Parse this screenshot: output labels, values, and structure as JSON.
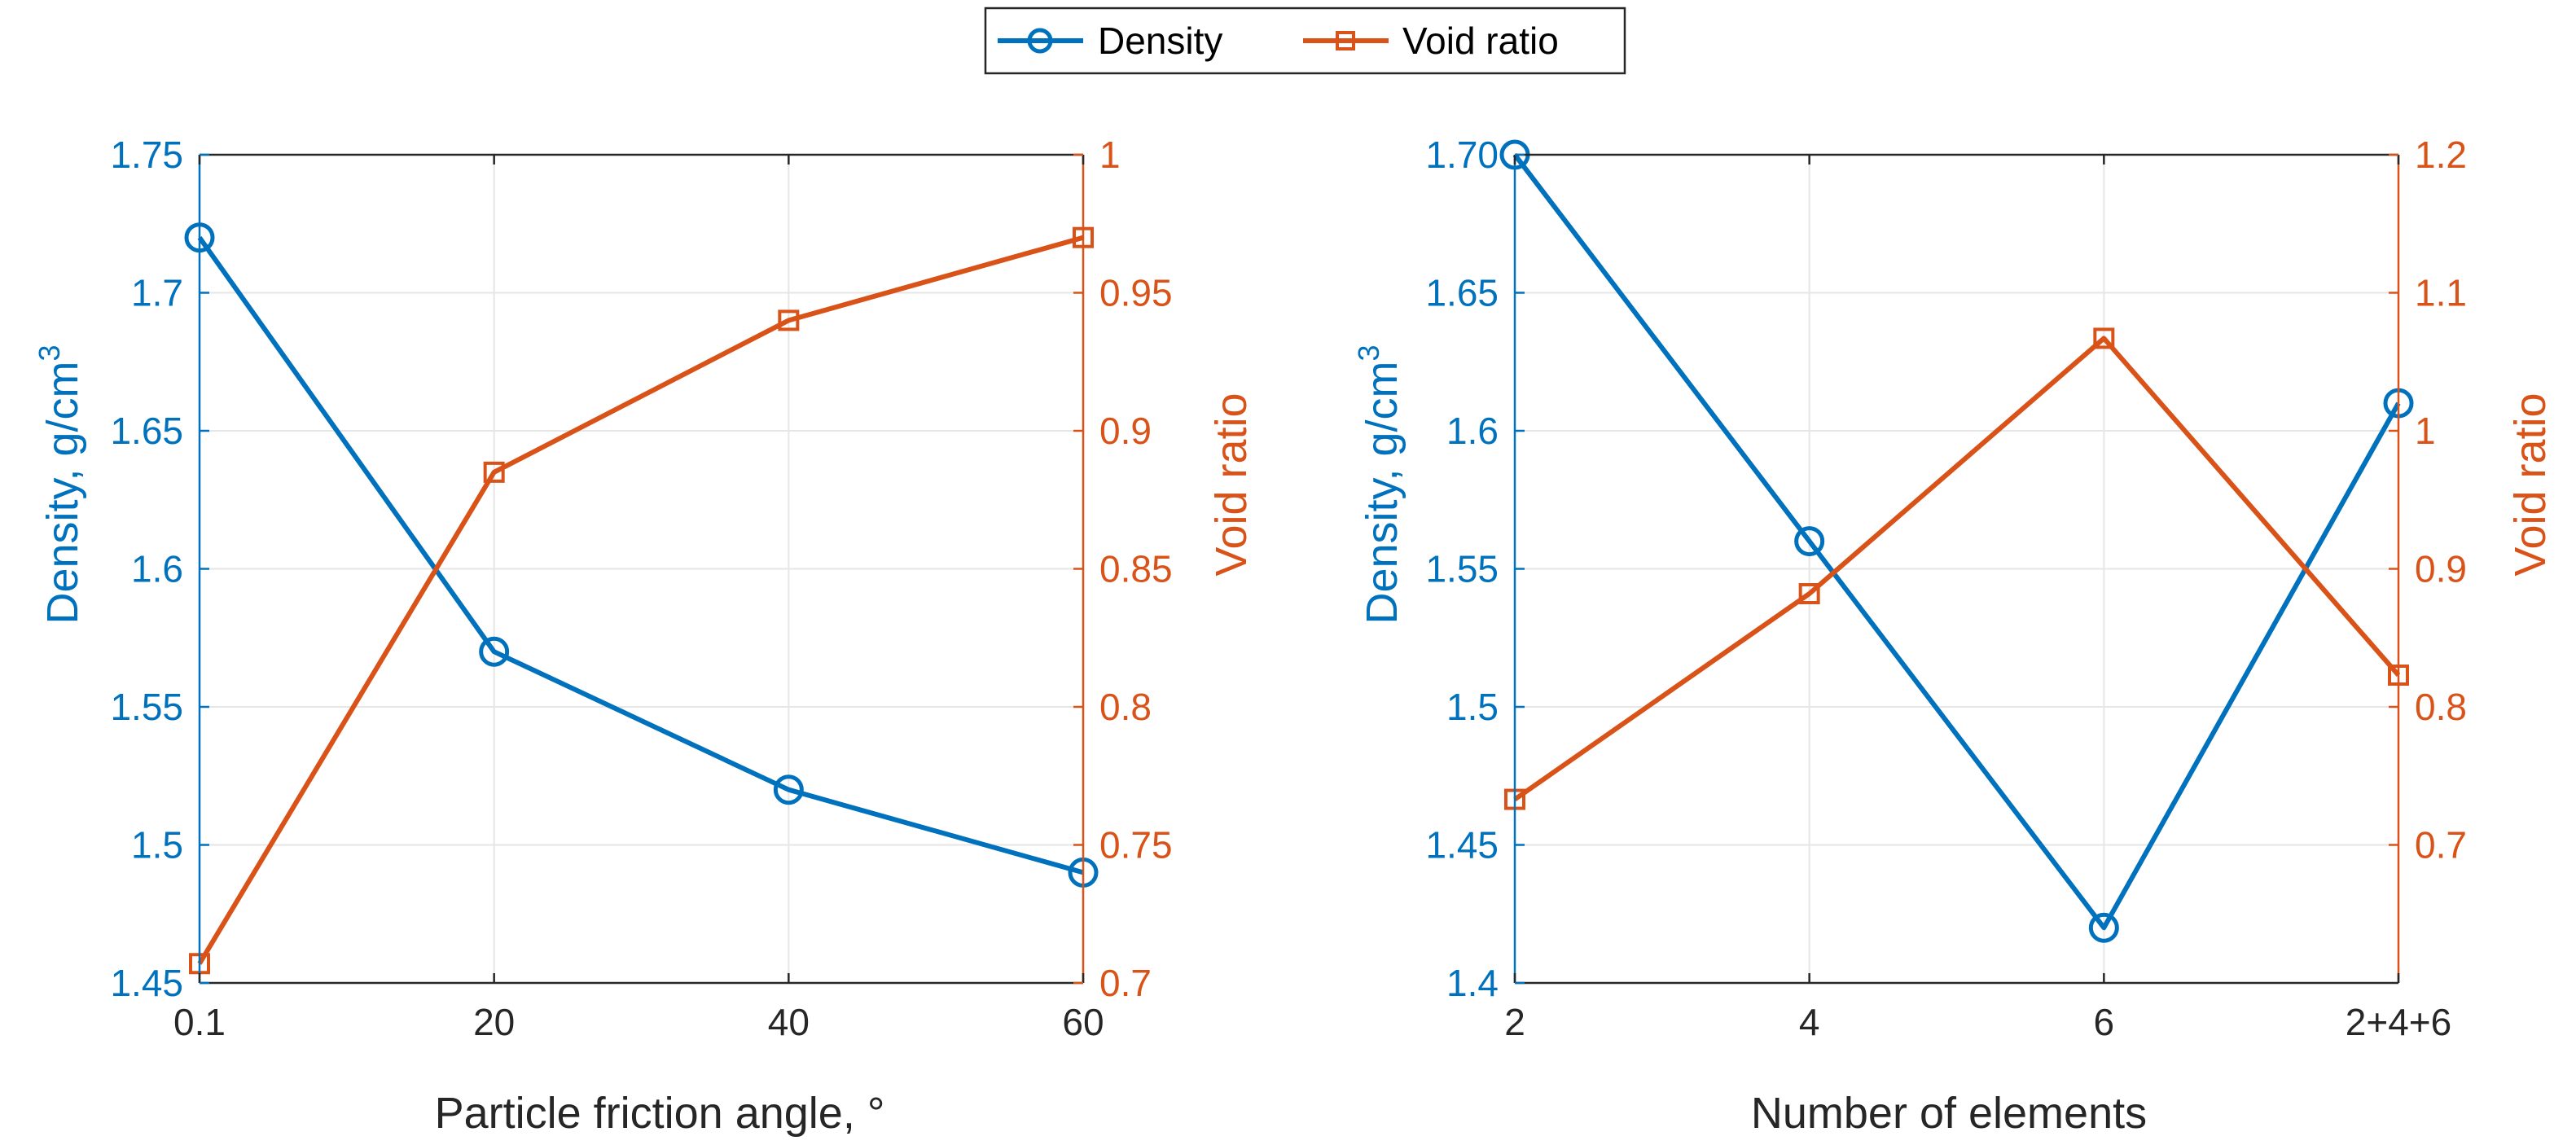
{
  "colors": {
    "density": "#0072BD",
    "void": "#D95319",
    "axis": "#262626",
    "grid": "#E6E6E6",
    "legend_border": "#262626"
  },
  "legend": {
    "entries": [
      {
        "label": "Density",
        "marker": "circle"
      },
      {
        "label": "Void ratio",
        "marker": "square"
      }
    ]
  },
  "chart_data": [
    {
      "type": "line",
      "xlabel": "Particle friction angle, °",
      "categories": [
        "0.1",
        "20",
        "40",
        "60"
      ],
      "left_axis": {
        "label_main": "Density, g/cm",
        "label_sup": "3",
        "ylim": [
          1.45,
          1.75
        ],
        "ticks": [
          1.45,
          1.5,
          1.55,
          1.6,
          1.65,
          1.7,
          1.75
        ],
        "tick_labels": [
          "1.45",
          "1.5",
          "1.55",
          "1.6",
          "1.65",
          "1.7",
          "1.75"
        ]
      },
      "right_axis": {
        "label": "Void ratio",
        "ylim": [
          0.7,
          1.0
        ],
        "ticks": [
          0.7,
          0.75,
          0.8,
          0.85,
          0.9,
          0.95,
          1.0
        ],
        "tick_labels": [
          "0.7",
          "0.75",
          "0.8",
          "0.85",
          "0.9",
          "0.95",
          "1"
        ]
      },
      "series": [
        {
          "name": "Density",
          "axis": "left",
          "marker": "circle",
          "values": [
            1.72,
            1.57,
            1.52,
            1.49
          ]
        },
        {
          "name": "Void ratio",
          "axis": "right",
          "marker": "square",
          "values": [
            0.707,
            0.885,
            0.94,
            0.97
          ]
        }
      ],
      "grid": true
    },
    {
      "type": "line",
      "xlabel": "Number of elements",
      "categories": [
        "2",
        "4",
        "6",
        "2+4+6"
      ],
      "left_axis": {
        "label_main": "Density, g/cm",
        "label_sup": "3",
        "ylim": [
          1.4,
          1.7
        ],
        "ticks": [
          1.4,
          1.45,
          1.5,
          1.55,
          1.6,
          1.65,
          1.7
        ],
        "tick_labels": [
          "1.4",
          "1.45",
          "1.5",
          "1.55",
          "1.6",
          "1.65",
          "1.70"
        ]
      },
      "right_axis": {
        "label": "Void ratio",
        "ylim": [
          0.6,
          1.2
        ],
        "ticks": [
          0.7,
          0.8,
          0.9,
          1.0,
          1.1,
          1.2
        ],
        "tick_labels": [
          "0.7",
          "0.8",
          "0.9",
          "1",
          "1.1",
          "1.2"
        ]
      },
      "series": [
        {
          "name": "Density",
          "axis": "left",
          "marker": "circle",
          "values": [
            1.7,
            1.56,
            1.42,
            1.61
          ]
        },
        {
          "name": "Void ratio",
          "axis": "right",
          "marker": "square",
          "values": [
            0.733,
            0.882,
            1.067,
            0.823
          ]
        }
      ],
      "grid": true
    }
  ]
}
